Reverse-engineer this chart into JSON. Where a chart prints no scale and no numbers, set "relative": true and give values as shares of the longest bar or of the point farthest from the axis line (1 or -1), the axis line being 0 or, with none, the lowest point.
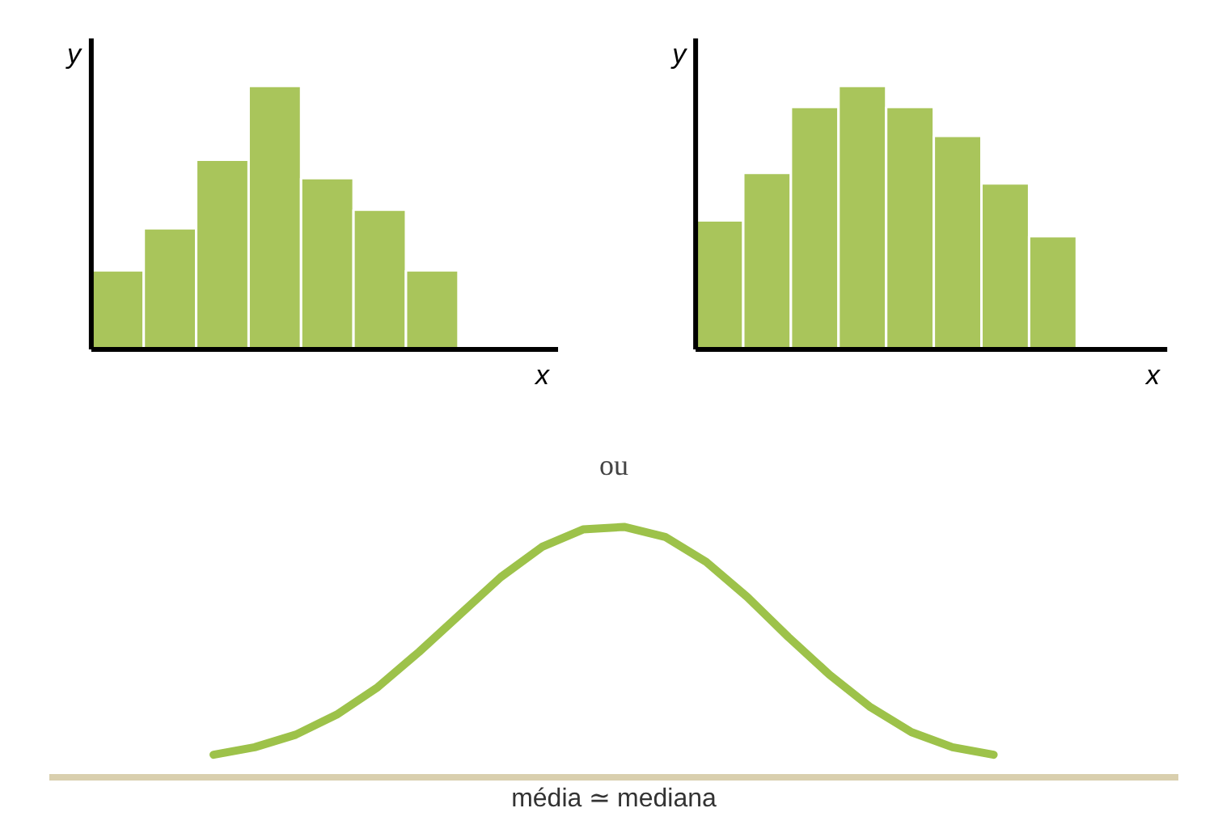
{
  "chart_data": [
    {
      "type": "bar",
      "relative": true,
      "xlabel": "x",
      "ylabel": "y",
      "color": "#a9c55b",
      "categories": [
        null,
        null,
        null,
        null,
        null,
        null,
        null
      ],
      "values": [
        0.3,
        0.46,
        0.72,
        1,
        0.65,
        0.53,
        0.3
      ]
    },
    {
      "type": "bar",
      "relative": true,
      "xlabel": "x",
      "ylabel": "y",
      "color": "#a9c55b",
      "categories": [
        null,
        null,
        null,
        null,
        null,
        null,
        null,
        null
      ],
      "values": [
        0.49,
        0.67,
        0.92,
        1,
        0.92,
        0.81,
        0.63,
        0.43
      ]
    },
    {
      "type": "line",
      "relative": true,
      "title": "ou",
      "xlabel": "média ≃ mediana",
      "color": "#9dc24a",
      "categories": [
        null,
        null,
        null,
        null,
        null,
        null,
        null,
        null,
        null,
        null,
        null,
        null,
        null,
        null,
        null,
        null,
        null,
        null,
        null,
        null
      ],
      "values": [
        0.09,
        0.12,
        0.17,
        0.25,
        0.36,
        0.5,
        0.65,
        0.8,
        0.92,
        0.99,
        1.0,
        0.96,
        0.86,
        0.72,
        0.56,
        0.41,
        0.28,
        0.18,
        0.12,
        0.09
      ]
    }
  ]
}
